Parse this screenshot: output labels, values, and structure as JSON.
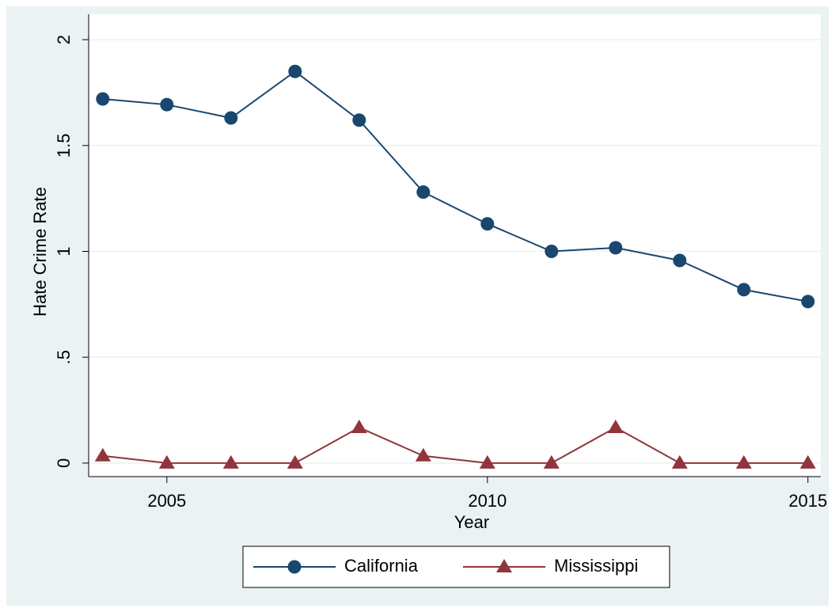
{
  "chart_data": {
    "type": "line",
    "x": [
      2004,
      2005,
      2006,
      2007,
      2008,
      2009,
      2010,
      2011,
      2012,
      2013,
      2014,
      2015
    ],
    "series": [
      {
        "name": "California",
        "color": "#1a476f",
        "marker": "circle",
        "values": [
          1.72,
          1.693,
          1.63,
          1.85,
          1.62,
          1.28,
          1.13,
          1.0,
          1.017,
          0.957,
          0.819,
          0.763
        ]
      },
      {
        "name": "Mississippi",
        "color": "#90353b",
        "marker": "triangle",
        "values": [
          0.034,
          0,
          0,
          0,
          0.168,
          0.034,
          0,
          0,
          0.168,
          0,
          0,
          0
        ]
      }
    ],
    "xlabel": "Year",
    "ylabel": "Hate Crime Rate",
    "xlim": [
      2003.78,
      2015.2
    ],
    "xticks": [
      2005,
      2010,
      2015
    ],
    "ylim": [
      -0.064,
      2.12
    ],
    "yticks": [
      0,
      {
        "value": 0.5,
        "label": ".5"
      },
      1,
      1.5,
      2
    ],
    "grid": true,
    "legend": "bottom"
  }
}
